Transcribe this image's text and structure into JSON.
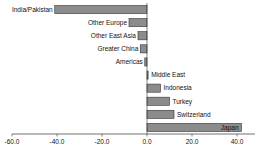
{
  "chart_data": {
    "type": "bar",
    "orientation": "horizontal",
    "categories": [
      "India/Pakistan",
      "Other Europe",
      "Other East Asia",
      "Greater China",
      "Americas",
      "Middle East",
      "Indonesia",
      "Turkey",
      "Switzerland",
      "Japan"
    ],
    "values": [
      -41,
      -8,
      -4,
      -3,
      -1,
      0.5,
      6,
      10,
      12,
      42
    ],
    "color": "#8c8c8c",
    "xlim": [
      -60,
      48
    ],
    "xticks": [
      {
        "value": -60,
        "label": "-60.0"
      },
      {
        "value": -40,
        "label": "-40.0"
      },
      {
        "value": -20,
        "label": "-20.0"
      },
      {
        "value": 0,
        "label": "0.0"
      },
      {
        "value": 20,
        "label": "20.0"
      },
      {
        "value": 40,
        "label": "40.0"
      }
    ],
    "grid": false
  }
}
